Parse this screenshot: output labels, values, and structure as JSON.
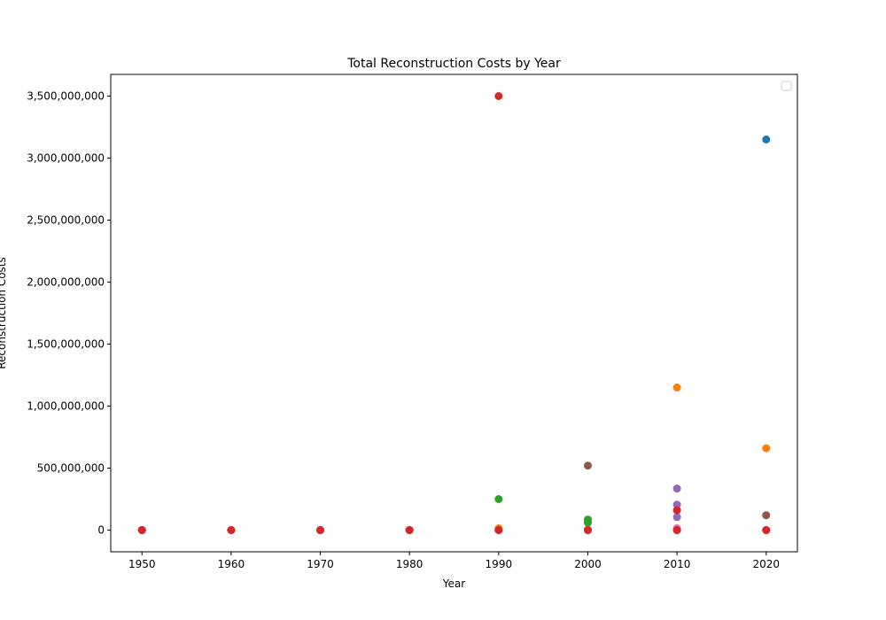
{
  "chart_data": {
    "type": "scatter",
    "title": "Total Reconstruction Costs by Year",
    "xlabel": "Year",
    "ylabel": "Reconstruction Costs",
    "xlim": [
      1946.5,
      2023.5
    ],
    "ylim": [
      -175000000,
      3675000000
    ],
    "xticks": [
      1950,
      1960,
      1970,
      1980,
      1990,
      2000,
      2010,
      2020
    ],
    "xtick_labels": [
      "1950",
      "1960",
      "1970",
      "1980",
      "1990",
      "2000",
      "2010",
      "2020"
    ],
    "yticks": [
      0,
      500000000,
      1000000000,
      1500000000,
      2000000000,
      2500000000,
      3000000000,
      3500000000
    ],
    "ytick_labels": [
      "0",
      "500,000,000",
      "1,000,000,000",
      "1,500,000,000",
      "2,000,000,000",
      "2,500,000,000",
      "3,000,000,000",
      "3,500,000,000"
    ],
    "grid": false,
    "legend": {
      "placement": "top-right",
      "entries": []
    },
    "series": [
      {
        "color": "#1f77b4",
        "points": [
          [
            1950,
            0
          ],
          [
            1960,
            0
          ],
          [
            1970,
            0
          ],
          [
            1980,
            0
          ],
          [
            1990,
            0
          ],
          [
            2000,
            0
          ],
          [
            2010,
            0
          ],
          [
            2020,
            3150000000
          ]
        ]
      },
      {
        "color": "#ff7f0e",
        "points": [
          [
            1950,
            0
          ],
          [
            1960,
            0
          ],
          [
            1970,
            0
          ],
          [
            1980,
            0
          ],
          [
            1990,
            15000000
          ],
          [
            2000,
            5000000
          ],
          [
            2010,
            1150000000
          ],
          [
            2020,
            660000000
          ]
        ]
      },
      {
        "color": "#2ca02c",
        "points": [
          [
            1950,
            0
          ],
          [
            1960,
            0
          ],
          [
            1970,
            0
          ],
          [
            1980,
            0
          ],
          [
            1990,
            250000000
          ],
          [
            2000,
            85000000
          ],
          [
            2000,
            60000000
          ],
          [
            2010,
            0
          ],
          [
            2020,
            0
          ]
        ]
      },
      {
        "color": "#9467bd",
        "points": [
          [
            1950,
            0
          ],
          [
            1960,
            0
          ],
          [
            1970,
            0
          ],
          [
            1980,
            0
          ],
          [
            1990,
            0
          ],
          [
            2000,
            0
          ],
          [
            2010,
            335000000
          ],
          [
            2010,
            205000000
          ],
          [
            2010,
            105000000
          ],
          [
            2020,
            0
          ]
        ]
      },
      {
        "color": "#8c564b",
        "points": [
          [
            1950,
            0
          ],
          [
            1960,
            0
          ],
          [
            1970,
            0
          ],
          [
            1980,
            0
          ],
          [
            1990,
            0
          ],
          [
            2000,
            520000000
          ],
          [
            2010,
            0
          ],
          [
            2020,
            120000000
          ]
        ]
      },
      {
        "color": "#e377c2",
        "points": [
          [
            1950,
            0
          ],
          [
            1960,
            0
          ],
          [
            1970,
            0
          ],
          [
            1980,
            0
          ],
          [
            1990,
            0
          ],
          [
            2000,
            0
          ],
          [
            2010,
            15000000
          ],
          [
            2020,
            0
          ]
        ]
      },
      {
        "color": "#d62728",
        "points": [
          [
            1950,
            0
          ],
          [
            1960,
            0
          ],
          [
            1970,
            0
          ],
          [
            1980,
            0
          ],
          [
            1990,
            3500000000
          ],
          [
            1990,
            0
          ],
          [
            2000,
            0
          ],
          [
            2010,
            160000000
          ],
          [
            2010,
            0
          ],
          [
            2020,
            0
          ]
        ]
      }
    ]
  }
}
